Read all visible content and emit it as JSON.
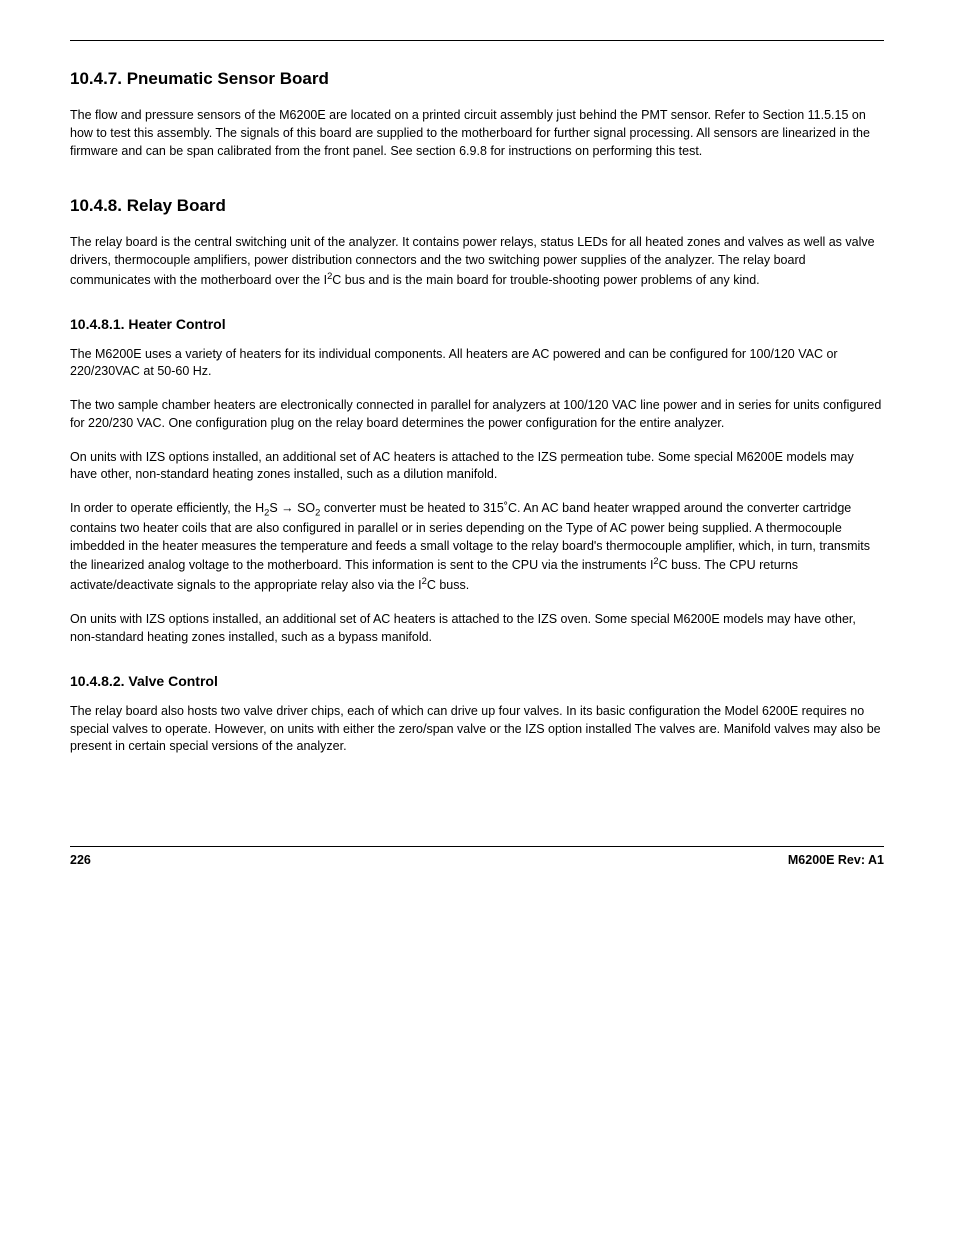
{
  "sections": {
    "s1": {
      "heading": "10.4.7. Pneumatic Sensor Board",
      "p1": "The flow and pressure sensors of the M6200E are located on a printed circuit assembly just behind the PMT sensor. Refer to Section 11.5.15 on how to test this assembly. The signals of this board are supplied to the motherboard for further signal processing. All sensors are linearized in the firmware and can be span calibrated from the front panel. See section 6.9.8 for instructions on performing this test."
    },
    "s2": {
      "heading": "10.4.8. Relay Board",
      "p1_a": "The relay board is the central switching unit of the analyzer. It contains power relays, status LEDs for all heated zones and valves as well as valve drivers, thermocouple amplifiers, power distribution connectors and the two switching power supplies of the analyzer. The relay board communicates with the motherboard over the I",
      "p1_b": "C bus and is the main board for trouble-shooting power problems of any kind.",
      "sub1": {
        "heading": "10.4.8.1. Heater Control",
        "p1": "The M6200E uses a variety of heaters for its individual components. All heaters are AC powered and can be configured for 100/120 VAC or 220/230VAC at 50-60 Hz.",
        "p2": "The two sample chamber heaters are electronically connected in parallel for analyzers at 100/120 VAC line power and in series for units configured for 220/230 VAC. One configuration plug on the relay board determines the power configuration for the entire analyzer.",
        "p3": "On units with IZS options installed, an additional set of AC heaters is attached to the IZS permeation tube. Some special M6200E models may have other, non-standard heating zones installed, such as a dilution manifold.",
        "p4_a": "In order to operate efficiently, the H",
        "p4_b": "S → SO",
        "p4_c": "  converter must be heated to 315˚C. An AC band heater wrapped around the converter cartridge contains two heater coils that are also configured in parallel or in series depending on the Type of AC power being supplied.   A thermocouple imbedded in the heater measures the temperature and feeds a small voltage to the relay board's thermocouple amplifier, which, in turn, transmits the linearized analog voltage to the motherboard.  This information is sent to the CPU via the instruments I",
        "p4_d": "C buss.  The CPU returns activate/deactivate signals to the appropriate relay also via the I",
        "p4_e": "C buss.",
        "p5": "On units with IZS options installed, an additional set of AC heaters is attached to the IZS oven. Some special M6200E models may have other, non-standard heating zones installed, such as a bypass manifold."
      },
      "sub2": {
        "heading": "10.4.8.2. Valve Control",
        "p1": "The relay board also hosts two valve driver chips, each of which can drive up four valves. In its basic configuration the Model 6200E requires no special valves to operate. However, on units with either the zero/span valve or the IZS option installed The valves are. Manifold valves may also be present in certain special versions of the analyzer."
      }
    }
  },
  "footer": {
    "page": "226",
    "rev": "M6200E Rev: A1"
  },
  "chem": {
    "two": "2",
    "sup2": "2"
  }
}
